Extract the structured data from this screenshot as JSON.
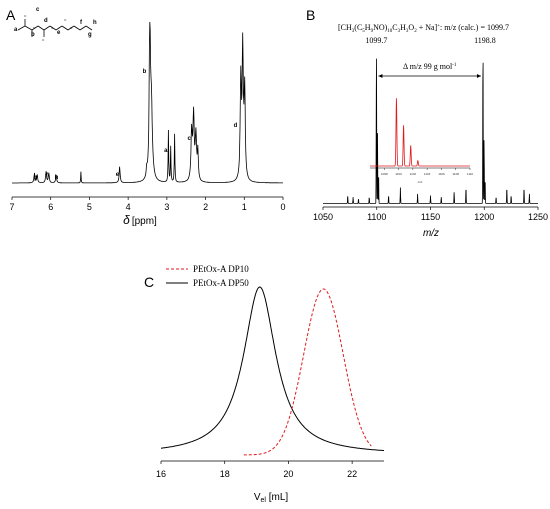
{
  "chart_data": [
    {
      "panel": "A",
      "type": "line",
      "xlabel_symbol": "δ",
      "xlabel_unit": "[ppm]",
      "xlim": [
        7,
        0
      ],
      "x_ticks": [
        7,
        6,
        5,
        4,
        3,
        2,
        1,
        0
      ],
      "peak_labels": [
        {
          "label": "g",
          "x": 6.4
        },
        {
          "label": "f",
          "x": 6.1
        },
        {
          "label": "h",
          "x": 5.85
        },
        {
          "label": "e",
          "x": 4.2
        },
        {
          "label": "b",
          "x": 3.45
        },
        {
          "label": "a",
          "x": 2.95
        },
        {
          "label": "c",
          "x": 2.32
        },
        {
          "label": "d",
          "x": 1.1
        }
      ],
      "structure_labels": [
        "a",
        "b",
        "c",
        "d",
        "e",
        "f",
        "g",
        "h"
      ]
    },
    {
      "panel": "B",
      "type": "line",
      "title": "[CH3(C5H9NO)10C3H3O2 + Na]+: m/z (calc.) = 1099.7",
      "title_parts": {
        "t1": "[CH",
        "s1": "3",
        "t2": "(C",
        "s2": "5",
        "t3": "H",
        "s3": "9",
        "t4": "NO)",
        "s4": "10",
        "t5": "C",
        "s5": "3",
        "t6": "H",
        "s6": "3",
        "t7": "O",
        "s7": "2",
        "t8": " + Na]",
        "sup": "+",
        "t9": ": m/z (calc.) = 1099.7"
      },
      "xlabel": "m/z",
      "xlim": [
        1050,
        1250
      ],
      "x_ticks": [
        1050,
        1100,
        1150,
        1200,
        1250
      ],
      "peak_labels": [
        {
          "label": "1099.7",
          "x": 1099.7
        },
        {
          "label": "1198.8",
          "x": 1198.8
        }
      ],
      "arrow_label_text": "Δ m/z 99 g mol",
      "arrow_label_sup": "-1",
      "inset": {
        "x_ticks": [
          1098,
          1100,
          1102,
          1104,
          1106,
          1108,
          1110
        ],
        "xlabel": "m/z"
      }
    },
    {
      "panel": "C",
      "type": "line",
      "xlabel_main": "V",
      "xlabel_sub": "el",
      "xlabel_unit": " [mL]",
      "xlim": [
        16,
        23
      ],
      "x_ticks": [
        16,
        18,
        20,
        22
      ],
      "series": [
        {
          "name": "PEtOx-A DP10",
          "color": "#e31a1c",
          "style": "dashed",
          "peak_x": 21.1
        },
        {
          "name": "PEtOx-A DP50",
          "color": "#000000",
          "style": "solid",
          "peak_x": 19.1
        }
      ]
    }
  ]
}
